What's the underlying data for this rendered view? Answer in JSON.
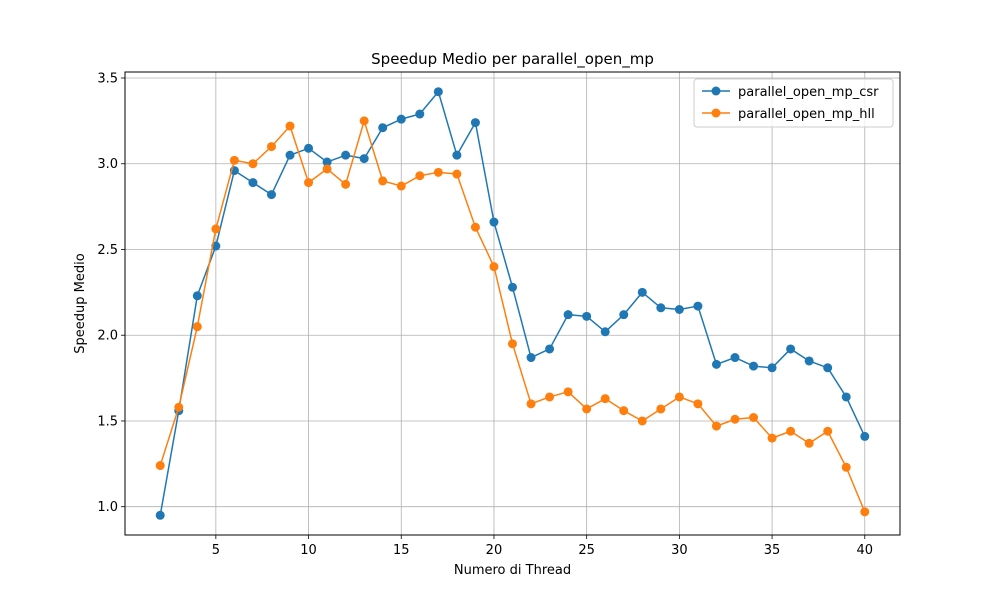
{
  "chart_data": {
    "type": "line",
    "title": "Speedup Medio per parallel_open_mp",
    "xlabel": "Numero di Thread",
    "ylabel": "Speedup Medio",
    "xlim": [
      0.1,
      41.9
    ],
    "ylim": [
      0.835,
      3.535
    ],
    "xticks": [
      5,
      10,
      15,
      20,
      25,
      30,
      35,
      40
    ],
    "yticks": [
      1.0,
      1.5,
      2.0,
      2.5,
      3.0,
      3.5
    ],
    "ytick_labels": [
      "1.0",
      "1.5",
      "2.0",
      "2.5",
      "3.0",
      "3.5"
    ],
    "grid": true,
    "legend_position": "top-right",
    "x": [
      2,
      3,
      4,
      5,
      6,
      7,
      8,
      9,
      10,
      11,
      12,
      13,
      14,
      15,
      16,
      17,
      18,
      19,
      20,
      21,
      22,
      23,
      24,
      25,
      26,
      27,
      28,
      29,
      30,
      31,
      32,
      33,
      34,
      35,
      36,
      37,
      38,
      39,
      40
    ],
    "series": [
      {
        "name": "parallel_open_mp_csr",
        "color": "#1f77b4",
        "values": [
          0.95,
          1.56,
          2.23,
          2.52,
          2.96,
          2.89,
          2.82,
          3.05,
          3.09,
          3.01,
          3.05,
          3.03,
          3.21,
          3.26,
          3.29,
          3.42,
          3.05,
          3.24,
          2.66,
          2.28,
          1.87,
          1.92,
          2.12,
          2.11,
          2.02,
          2.12,
          2.25,
          2.16,
          2.15,
          2.17,
          1.83,
          1.87,
          1.82,
          1.81,
          1.92,
          1.85,
          1.81,
          1.64,
          1.41
        ]
      },
      {
        "name": "parallel_open_mp_hll",
        "color": "#ff7f0e",
        "values": [
          1.24,
          1.58,
          2.05,
          2.62,
          3.02,
          3.0,
          3.1,
          3.22,
          2.89,
          2.97,
          2.88,
          3.25,
          2.9,
          2.87,
          2.93,
          2.95,
          2.94,
          2.63,
          2.4,
          1.95,
          1.6,
          1.64,
          1.67,
          1.57,
          1.63,
          1.56,
          1.5,
          1.57,
          1.64,
          1.6,
          1.47,
          1.51,
          1.52,
          1.4,
          1.44,
          1.37,
          1.44,
          1.23,
          0.97
        ]
      }
    ]
  }
}
